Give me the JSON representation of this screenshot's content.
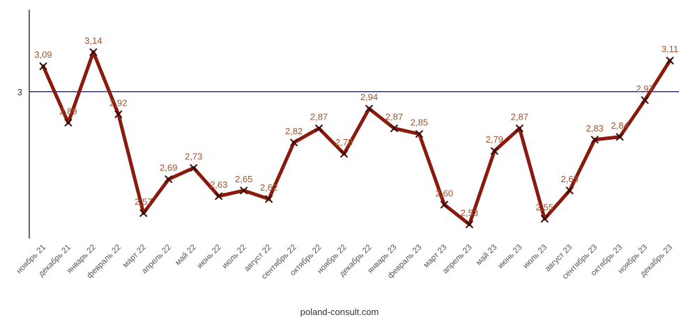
{
  "chart_data": {
    "type": "line",
    "title": "",
    "xlabel": "",
    "ylabel": "",
    "categories": [
      "ноябрь 21",
      "декабрь 21",
      "январь 22",
      "февраль 22",
      "март 22",
      "апрель 22",
      "май 22",
      "июнь 22",
      "июль 22",
      "август 22",
      "сентябрь 22",
      "октябрь 22",
      "ноябрь 22",
      "декабрь 22",
      "январь 23",
      "февраль 23",
      "март 23",
      "апрель 23",
      "май 23",
      "июнь 23",
      "июль 23",
      "август 23",
      "сентябрь 23",
      "октябрь 23",
      "ноябрь 23",
      "декабрь 23"
    ],
    "series": [
      {
        "values": [
          3.09,
          2.89,
          3.14,
          2.92,
          2.57,
          2.69,
          2.73,
          2.63,
          2.65,
          2.62,
          2.82,
          2.87,
          2.78,
          2.94,
          2.87,
          2.85,
          2.6,
          2.53,
          2.79,
          2.87,
          2.55,
          2.65,
          2.83,
          2.84,
          2.97,
          3.11
        ],
        "labels": [
          "3,09",
          "2,89",
          "3,14",
          "2,92",
          "2,57",
          "2,69",
          "2,73",
          "2,63",
          "2,65",
          "2,62",
          "2,82",
          "2,87",
          "2,78",
          "2,94",
          "2,87",
          "2,85",
          "2,60",
          "2,53",
          "2,79",
          "2,87",
          "2,55",
          "2,65",
          "2,83",
          "2,84",
          "2,97",
          "3,11"
        ],
        "color": "#8b1a0e"
      }
    ],
    "reference_line": {
      "value": 3,
      "label": "3",
      "color": "#2233aa"
    },
    "label_color": "#a0522d",
    "ylim": [
      2.48,
      3.29
    ],
    "grid": false,
    "legend": "none"
  },
  "source": "poland-consult.com"
}
